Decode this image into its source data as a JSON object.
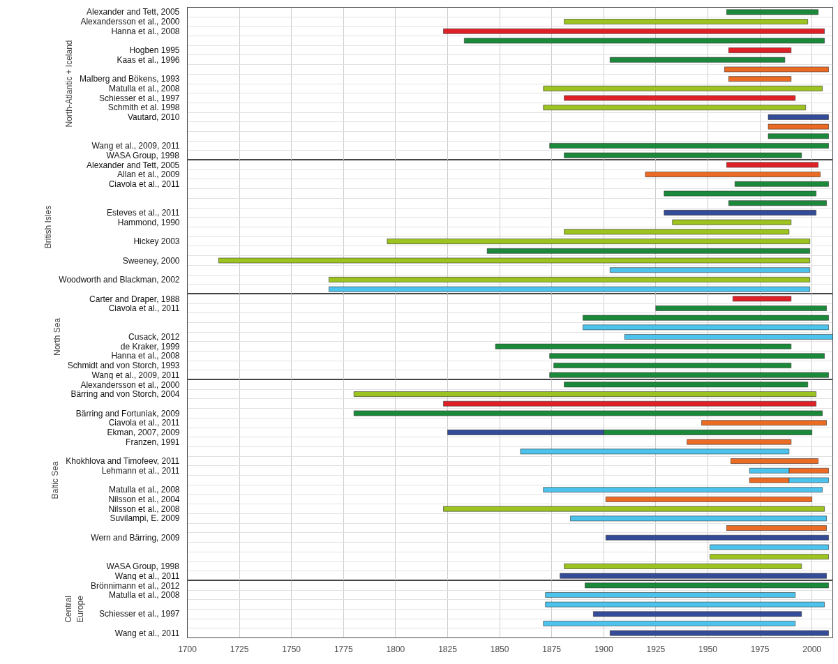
{
  "chart_data": [
    {
      "type": "bar",
      "orientation": "horizontal",
      "ylabel": "North-Atlantic + Iceland",
      "xlim": [
        1700,
        2010
      ],
      "xticks": [
        1700,
        1725,
        1750,
        1775,
        1800,
        1825,
        1850,
        1875,
        1900,
        1925,
        1950,
        1975,
        2000
      ],
      "grid": true,
      "tick_labels": "y",
      "categories": [
        "Alexander and Tett, 2005",
        "Alexandersson et al., 2000",
        "Hanna et al., 2008",
        null,
        "Hogben 1995",
        "Kaas et al., 1996",
        null,
        "Malberg and Bökens, 1993",
        "Matulla et al., 2008",
        "Schiesser et al., 1997",
        "Schmith et al. 1998",
        "Vautard, 2010",
        null,
        null,
        "Wang et al., 2009, 2011",
        "WASA Group, 1998"
      ],
      "series": [
        {
          "color": "#1a8a3a",
          "base": [
            1959,
            null,
            null,
            1833,
            null,
            1903,
            null,
            null,
            null,
            null,
            null,
            null,
            null,
            1979,
            1874,
            1881
          ],
          "values": [
            44,
            null,
            null,
            173,
            null,
            84,
            null,
            null,
            null,
            null,
            null,
            null,
            null,
            29,
            134,
            114
          ]
        },
        {
          "color": "#9cc31f",
          "base": [
            null,
            1881,
            null,
            null,
            null,
            null,
            null,
            null,
            1871,
            null,
            1871,
            null,
            null,
            null,
            null,
            null
          ],
          "values": [
            null,
            117,
            null,
            null,
            null,
            null,
            null,
            null,
            134,
            null,
            126,
            null,
            null,
            null,
            null,
            null
          ]
        },
        {
          "color": "#e02027",
          "base": [
            null,
            null,
            1823,
            null,
            1960,
            null,
            null,
            null,
            null,
            1881,
            null,
            null,
            null,
            null,
            null,
            null
          ],
          "values": [
            null,
            null,
            183,
            null,
            30,
            null,
            null,
            null,
            null,
            111,
            null,
            null,
            null,
            null,
            null,
            null
          ]
        },
        {
          "color": "#ec6b24",
          "base": [
            null,
            null,
            null,
            null,
            null,
            null,
            1958,
            1960,
            null,
            null,
            null,
            null,
            1979,
            null,
            null,
            null
          ],
          "values": [
            null,
            null,
            null,
            null,
            null,
            null,
            50,
            30,
            null,
            null,
            null,
            null,
            29,
            null,
            null,
            null
          ]
        },
        {
          "color": "#344b98",
          "base": [
            null,
            null,
            null,
            null,
            null,
            null,
            null,
            null,
            null,
            null,
            null,
            1979,
            null,
            null,
            null,
            null
          ],
          "values": [
            null,
            null,
            null,
            null,
            null,
            null,
            null,
            null,
            null,
            null,
            null,
            29,
            null,
            null,
            null,
            null
          ]
        }
      ]
    },
    {
      "type": "bar",
      "orientation": "horizontal",
      "ylabel": "British Isles",
      "xlim": [
        1700,
        2010
      ],
      "xticks": [
        1700,
        1725,
        1750,
        1775,
        1800,
        1825,
        1850,
        1875,
        1900,
        1925,
        1950,
        1975,
        2000
      ],
      "grid": true,
      "tick_labels": "y",
      "categories": [
        "Alexander and Tett, 2005",
        "Allan et al., 2009",
        "Ciavola et al., 2011",
        null,
        null,
        "Esteves et al., 2011",
        "Hammond, 1990",
        null,
        "Hickey 2003",
        null,
        "Sweeney, 2000",
        null,
        "Woodworth and Blackman, 2002",
        null
      ],
      "series": [
        {
          "color": "#e02027",
          "base": [
            1959,
            null,
            null,
            null,
            null,
            null,
            null,
            null,
            null,
            null,
            null,
            null,
            null,
            null
          ],
          "values": [
            44,
            null,
            null,
            null,
            null,
            null,
            null,
            null,
            null,
            null,
            null,
            null,
            null,
            null
          ]
        },
        {
          "color": "#ec6b24",
          "base": [
            null,
            1920,
            null,
            null,
            null,
            null,
            null,
            null,
            null,
            null,
            null,
            null,
            null,
            null
          ],
          "values": [
            null,
            84,
            null,
            null,
            null,
            null,
            null,
            null,
            null,
            null,
            null,
            null,
            null,
            null
          ]
        },
        {
          "color": "#1a8a3a",
          "base": [
            null,
            null,
            1963,
            1929,
            1960,
            null,
            null,
            null,
            null,
            1844,
            null,
            null,
            null,
            null
          ],
          "values": [
            null,
            null,
            45,
            73,
            47,
            null,
            null,
            null,
            null,
            155,
            null,
            null,
            null,
            null
          ]
        },
        {
          "color": "#344b98",
          "base": [
            null,
            null,
            null,
            null,
            null,
            1929,
            null,
            null,
            null,
            null,
            null,
            null,
            null,
            null
          ],
          "values": [
            null,
            null,
            null,
            null,
            null,
            73,
            null,
            null,
            null,
            null,
            null,
            null,
            null,
            null
          ]
        },
        {
          "color": "#9cc31f",
          "base": [
            null,
            null,
            null,
            null,
            null,
            null,
            1933,
            1881,
            1796,
            null,
            1715,
            null,
            1768,
            null
          ],
          "values": [
            null,
            null,
            null,
            null,
            null,
            null,
            57,
            108,
            203,
            null,
            284,
            null,
            231,
            null
          ]
        },
        {
          "color": "#4cc3ec",
          "base": [
            null,
            null,
            null,
            null,
            null,
            null,
            null,
            null,
            null,
            null,
            null,
            1903,
            null,
            1768
          ],
          "values": [
            null,
            null,
            null,
            null,
            null,
            null,
            null,
            null,
            null,
            null,
            null,
            96,
            null,
            231
          ]
        }
      ]
    },
    {
      "type": "bar",
      "orientation": "horizontal",
      "ylabel": "North Sea",
      "xlim": [
        1700,
        2010
      ],
      "xticks": [
        1700,
        1725,
        1750,
        1775,
        1800,
        1825,
        1850,
        1875,
        1900,
        1925,
        1950,
        1975,
        2000
      ],
      "grid": true,
      "tick_labels": "y",
      "categories": [
        "Carter and Draper, 1988",
        "Ciavola et al., 2011",
        null,
        null,
        "Cusack, 2012",
        "de Kraker, 1999",
        "Hanna et al., 2008",
        "Schmidt and von Storch, 1993",
        "Wang et al., 2009, 2011"
      ],
      "series": [
        {
          "color": "#e02027",
          "base": [
            1962,
            null,
            null,
            null,
            null,
            null,
            null,
            null,
            null
          ],
          "values": [
            28,
            null,
            null,
            null,
            null,
            null,
            null,
            null,
            null
          ]
        },
        {
          "color": "#1a8a3a",
          "base": [
            null,
            1925,
            1890,
            null,
            null,
            1848,
            1874,
            1876,
            1874
          ],
          "values": [
            null,
            82,
            118,
            null,
            null,
            142,
            132,
            114,
            134
          ]
        },
        {
          "color": "#4cc3ec",
          "base": [
            null,
            null,
            null,
            1890,
            1910,
            null,
            null,
            null,
            null
          ],
          "values": [
            null,
            null,
            null,
            118,
            100,
            null,
            null,
            null,
            null
          ]
        }
      ]
    },
    {
      "type": "bar",
      "orientation": "horizontal",
      "ylabel": "Baltic Sea",
      "xlim": [
        1700,
        2010
      ],
      "xticks": [
        1700,
        1725,
        1750,
        1775,
        1800,
        1825,
        1850,
        1875,
        1900,
        1925,
        1950,
        1975,
        2000
      ],
      "grid": true,
      "tick_labels": "y",
      "categories": [
        "Alexandersson et al., 2000",
        "Bärring and von Storch, 2004",
        null,
        "Bärring and Fortuniak, 2009",
        "Ciavola et al., 2011",
        "Ekman, 2007, 2009",
        "Franzen, 1991",
        null,
        "Khokhlova and Timofeev, 2011",
        "Lehmann et al., 2011",
        null,
        "Matulla et al., 2008",
        "Nilsson et al., 2004",
        "Nilsson et al., 2008",
        "Suvilampi, E. 2009",
        null,
        "Wern and Bärring, 2009",
        null,
        null,
        "WASA Group, 1998",
        "Wang et al., 2011"
      ],
      "series": [
        {
          "color": "#1a8a3a",
          "base": [
            1881,
            null,
            null,
            1780,
            null,
            1900,
            null,
            null,
            null,
            null,
            null,
            null,
            null,
            null,
            null,
            null,
            null,
            null,
            null,
            null,
            null
          ],
          "values": [
            117,
            null,
            null,
            225,
            null,
            100,
            null,
            null,
            null,
            null,
            null,
            null,
            null,
            null,
            null,
            null,
            null,
            null,
            null,
            null,
            null
          ]
        },
        {
          "color": "#9cc31f",
          "base": [
            null,
            1780,
            null,
            null,
            null,
            null,
            null,
            null,
            null,
            null,
            null,
            null,
            null,
            1823,
            null,
            null,
            null,
            null,
            1951,
            1881,
            null
          ],
          "values": [
            null,
            222,
            null,
            null,
            null,
            null,
            null,
            null,
            null,
            null,
            null,
            null,
            null,
            183,
            null,
            null,
            null,
            null,
            57,
            114,
            null
          ]
        },
        {
          "color": "#e02027",
          "base": [
            null,
            null,
            1823,
            null,
            null,
            null,
            null,
            null,
            null,
            null,
            null,
            null,
            null,
            null,
            null,
            null,
            null,
            null,
            null,
            null,
            null
          ],
          "values": [
            null,
            null,
            179,
            null,
            null,
            null,
            null,
            null,
            null,
            null,
            null,
            null,
            null,
            null,
            null,
            null,
            null,
            null,
            null,
            null,
            null
          ]
        },
        {
          "color": "#ec6b24",
          "base": [
            null,
            null,
            null,
            null,
            1947,
            null,
            1940,
            null,
            1961,
            1989,
            1970,
            null,
            1901,
            null,
            null,
            1959,
            null,
            null,
            null,
            null,
            null
          ],
          "values": [
            null,
            null,
            null,
            null,
            60,
            null,
            50,
            null,
            42,
            19,
            19,
            null,
            99,
            null,
            null,
            48,
            null,
            null,
            null,
            null,
            null
          ]
        },
        {
          "color": "#344b98",
          "base": [
            null,
            null,
            null,
            null,
            null,
            1825,
            null,
            null,
            null,
            null,
            null,
            null,
            null,
            null,
            null,
            null,
            1901,
            null,
            null,
            null,
            1879
          ],
          "values": [
            null,
            null,
            null,
            null,
            null,
            75,
            null,
            null,
            null,
            null,
            null,
            null,
            null,
            null,
            null,
            null,
            107,
            null,
            null,
            null,
            128
          ]
        },
        {
          "color": "#4cc3ec",
          "base": [
            null,
            null,
            null,
            null,
            null,
            null,
            null,
            1860,
            null,
            1970,
            1989,
            1871,
            null,
            null,
            1884,
            null,
            null,
            1951,
            null,
            null,
            null
          ],
          "values": [
            null,
            null,
            null,
            null,
            null,
            null,
            null,
            129,
            null,
            19,
            19,
            134,
            null,
            null,
            123,
            null,
            null,
            57,
            null,
            null,
            null
          ]
        }
      ]
    },
    {
      "type": "bar",
      "orientation": "horizontal",
      "ylabel": "Central\nEurope",
      "xlim": [
        1700,
        2010
      ],
      "xticks": [
        1700,
        1725,
        1750,
        1775,
        1800,
        1825,
        1850,
        1875,
        1900,
        1925,
        1950,
        1975,
        2000
      ],
      "grid": true,
      "categories": [
        "Brönnimann et al., 2012",
        "Matulla et al., 2008",
        null,
        "Schiesser et al., 1997",
        null,
        "Wang et al., 2011"
      ],
      "series": [
        {
          "color": "#1a8a3a",
          "base": [
            1891,
            null,
            null,
            null,
            null,
            null
          ],
          "values": [
            117,
            null,
            null,
            null,
            null,
            null
          ]
        },
        {
          "color": "#4cc3ec",
          "base": [
            null,
            1872,
            1872,
            null,
            1871,
            null
          ],
          "values": [
            null,
            120,
            134,
            null,
            121,
            null
          ]
        },
        {
          "color": "#344b98",
          "base": [
            null,
            null,
            null,
            1895,
            null,
            1903
          ],
          "values": [
            null,
            null,
            null,
            100,
            null,
            105
          ]
        }
      ]
    }
  ]
}
